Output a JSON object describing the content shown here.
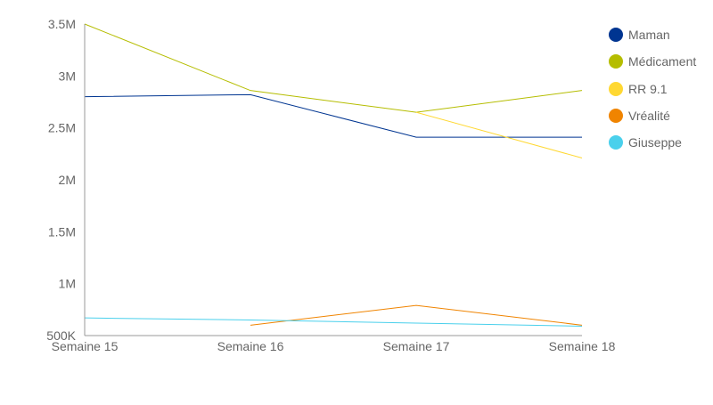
{
  "chart_data": {
    "type": "line",
    "categories": [
      "Semaine 15",
      "Semaine 16",
      "Semaine 17",
      "Semaine 18"
    ],
    "ylim": [
      500000,
      3500000
    ],
    "y_ticks": [
      {
        "value": 500000,
        "label": "500K"
      },
      {
        "value": 1000000,
        "label": "1M"
      },
      {
        "value": 1500000,
        "label": "1.5M"
      },
      {
        "value": 2000000,
        "label": "2M"
      },
      {
        "value": 2500000,
        "label": "2.5M"
      },
      {
        "value": 3000000,
        "label": "3M"
      },
      {
        "value": 3500000,
        "label": "3.5M"
      }
    ],
    "grid": false,
    "legend_position": "right",
    "series": [
      {
        "name": "Maman",
        "color": "#003591",
        "values": [
          2800000,
          2820000,
          2410000,
          2410000
        ]
      },
      {
        "name": "Médicament",
        "color": "#b5bd00",
        "values": [
          3500000,
          2860000,
          2650000,
          2860000
        ]
      },
      {
        "name": "RR 9.1",
        "color": "#ffd832",
        "values": [
          null,
          null,
          2650000,
          2210000
        ]
      },
      {
        "name": "Vréalité",
        "color": "#f08400",
        "values": [
          null,
          600000,
          790000,
          600000
        ]
      },
      {
        "name": "Giuseppe",
        "color": "#4ad0ec",
        "values": [
          670000,
          650000,
          620000,
          590000
        ]
      }
    ]
  }
}
